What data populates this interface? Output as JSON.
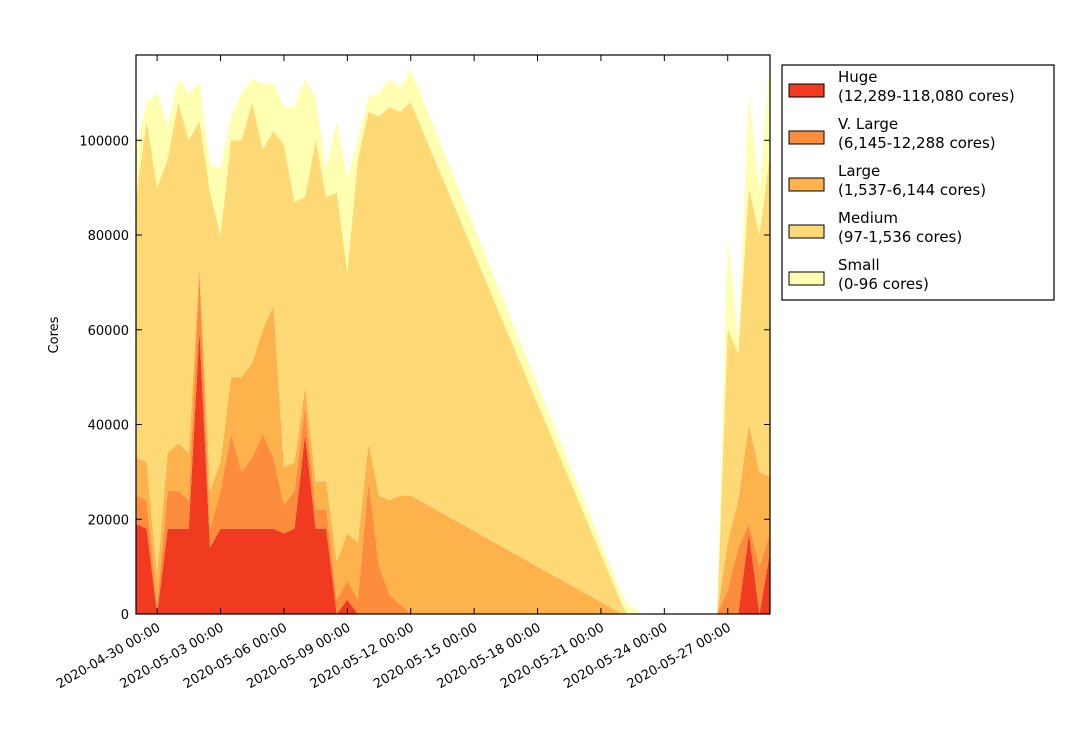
{
  "chart_data": {
    "type": "area",
    "stacked": true,
    "title": "",
    "xlabel": "",
    "ylabel": "Cores",
    "ylim": [
      0,
      118000
    ],
    "xlim": [
      "2020-04-29 00:00",
      "2020-05-29 00:00"
    ],
    "yticks": [
      0,
      20000,
      40000,
      60000,
      80000,
      100000
    ],
    "xticks": [
      "2020-04-30 00:00",
      "2020-05-03 00:00",
      "2020-05-06 00:00",
      "2020-05-09 00:00",
      "2020-05-12 00:00",
      "2020-05-15 00:00",
      "2020-05-18 00:00",
      "2020-05-21 00:00",
      "2020-05-24 00:00",
      "2020-05-27 00:00"
    ],
    "grid": false,
    "legend": "outside-right",
    "x": [
      "2020-04-29 00:00",
      "2020-04-29 12:00",
      "2020-04-30 00:00",
      "2020-04-30 12:00",
      "2020-05-01 00:00",
      "2020-05-01 12:00",
      "2020-05-02 00:00",
      "2020-05-02 12:00",
      "2020-05-03 00:00",
      "2020-05-03 12:00",
      "2020-05-04 00:00",
      "2020-05-04 12:00",
      "2020-05-05 00:00",
      "2020-05-05 12:00",
      "2020-05-06 00:00",
      "2020-05-06 12:00",
      "2020-05-07 00:00",
      "2020-05-07 12:00",
      "2020-05-08 00:00",
      "2020-05-08 12:00",
      "2020-05-09 00:00",
      "2020-05-09 12:00",
      "2020-05-10 00:00",
      "2020-05-10 12:00",
      "2020-05-11 00:00",
      "2020-05-11 12:00",
      "2020-05-12 00:00",
      "2020-05-22 00:00",
      "2020-05-22 06:00",
      "2020-05-23 00:00",
      "2020-05-26 00:00",
      "2020-05-26 12:00",
      "2020-05-27 00:00",
      "2020-05-27 12:00",
      "2020-05-28 00:00",
      "2020-05-28 12:00",
      "2020-05-29 00:00"
    ],
    "series": [
      {
        "name": "Huge\n(12,289-118,080 cores)",
        "color": "#f03b20",
        "values": [
          19000,
          18000,
          0,
          18000,
          18000,
          18000,
          60000,
          14000,
          18000,
          18000,
          18000,
          18000,
          18000,
          18000,
          17000,
          18000,
          38000,
          18000,
          18000,
          0,
          3000,
          0,
          0,
          0,
          0,
          0,
          0,
          0,
          0,
          0,
          0,
          0,
          0,
          0,
          17000,
          0,
          13000
        ]
      },
      {
        "name": "V. Large\n(6,145-12,288 cores)",
        "color": "#fd8d3c",
        "values": [
          6000,
          6000,
          2000,
          8000,
          8000,
          6000,
          12000,
          4000,
          8000,
          20000,
          12000,
          15000,
          20000,
          15000,
          6000,
          8000,
          6000,
          4000,
          4000,
          3000,
          4000,
          3000,
          28000,
          10000,
          4000,
          2000,
          0,
          0,
          0,
          0,
          0,
          0,
          5000,
          14000,
          2000,
          10000,
          4000
        ]
      },
      {
        "name": "Large\n(1,537-6,144 cores)",
        "color": "#feb24c",
        "values": [
          8000,
          8000,
          6000,
          8000,
          10000,
          10000,
          2000,
          8000,
          6000,
          12000,
          20000,
          20000,
          22000,
          32000,
          8000,
          6000,
          4000,
          6000,
          6000,
          8000,
          10000,
          12000,
          8000,
          15000,
          20000,
          23000,
          25000,
          0,
          0,
          0,
          0,
          0,
          10000,
          10000,
          21000,
          20000,
          12000
        ]
      },
      {
        "name": "Medium\n(97-1,536 cores)",
        "color": "#fed976",
        "values": [
          55000,
          72000,
          82000,
          62000,
          72000,
          66000,
          30000,
          63000,
          48000,
          50000,
          50000,
          55000,
          38000,
          37000,
          68000,
          55000,
          40000,
          72000,
          60000,
          78000,
          55000,
          81000,
          70000,
          80000,
          83000,
          81000,
          83000,
          2000,
          0,
          0,
          0,
          0,
          45000,
          31000,
          50000,
          50000,
          68000
        ]
      },
      {
        "name": "Small\n(0-96 cores)",
        "color": "#ffffb2",
        "values": [
          10000,
          4000,
          20000,
          7000,
          5000,
          10000,
          8000,
          6000,
          14000,
          5000,
          10000,
          5000,
          14000,
          10000,
          8000,
          20000,
          25000,
          9000,
          6000,
          15000,
          20000,
          4000,
          3000,
          5000,
          6000,
          5000,
          7000,
          2000,
          2000,
          0,
          0,
          0,
          20000,
          2000,
          20000,
          9000,
          20000
        ]
      }
    ]
  }
}
